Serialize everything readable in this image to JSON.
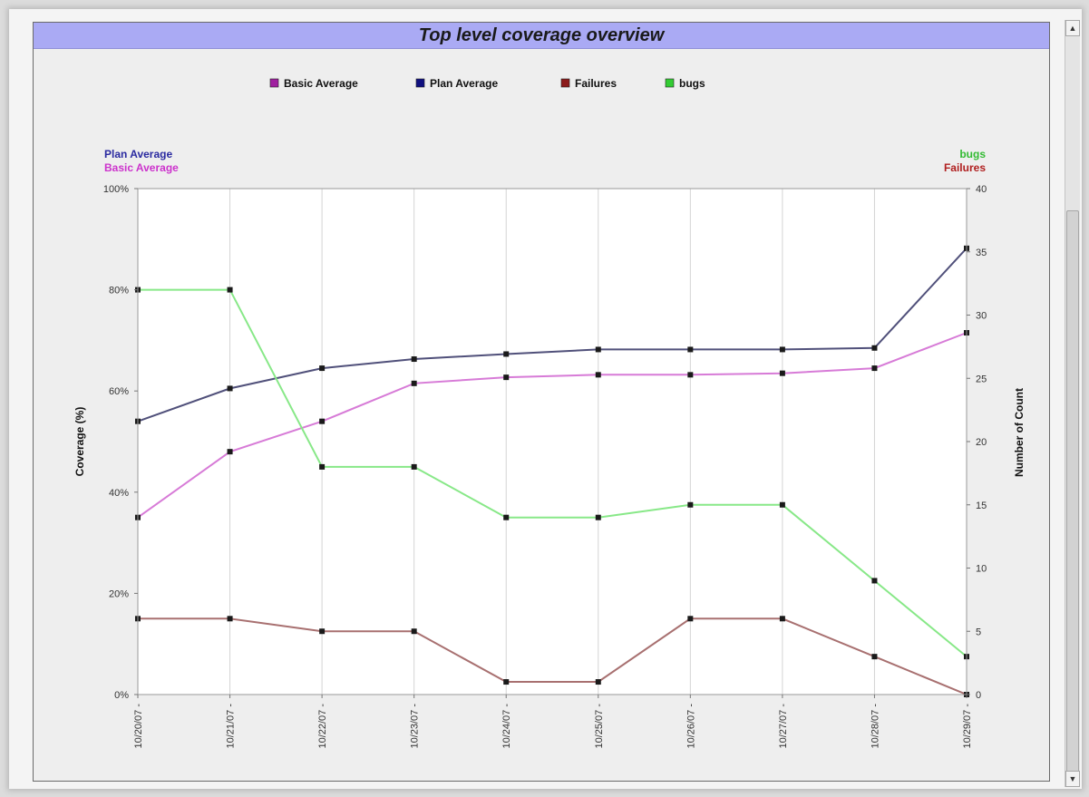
{
  "window": {
    "scrollbar": {
      "up_icon": "arrow-up-icon",
      "down_icon": "arrow-down-icon"
    }
  },
  "chart_data": {
    "type": "line",
    "title": "Top level coverage overview",
    "x": [
      "10/20/07",
      "10/21/07",
      "10/22/07",
      "10/23/07",
      "10/24/07",
      "10/25/07",
      "10/26/07",
      "10/27/07",
      "10/28/07",
      "10/29/07"
    ],
    "left_axis": {
      "label": "Coverage (%)",
      "range": [
        0,
        100
      ],
      "ticks": [
        "0%",
        "20%",
        "40%",
        "60%",
        "80%",
        "100%"
      ],
      "tick_values": [
        0,
        20,
        40,
        60,
        80,
        100
      ],
      "header_labels": [
        "Plan Average",
        "Basic Average"
      ]
    },
    "right_axis": {
      "label": "Number of Count",
      "range": [
        0,
        40
      ],
      "ticks": [
        "0",
        "5",
        "10",
        "15",
        "20",
        "25",
        "30",
        "35",
        "40"
      ],
      "tick_values": [
        0,
        5,
        10,
        15,
        20,
        25,
        30,
        35,
        40
      ],
      "header_labels": [
        "bugs",
        "Failures"
      ]
    },
    "legend": {
      "placement": "top-center",
      "items": [
        "Basic Average",
        "Plan Average",
        "Failures",
        "bugs"
      ]
    },
    "grid": {
      "vertical": true,
      "horizontal": false
    },
    "series": [
      {
        "name": "Basic Average",
        "axis": "left",
        "color": "#d77bd7",
        "legend_color": "#a020a0",
        "header_color": "#cc33cc",
        "values": [
          35,
          48,
          54,
          61.5,
          62.7,
          63.2,
          63.2,
          63.5,
          64.5,
          71.5
        ]
      },
      {
        "name": "Plan Average",
        "axis": "left",
        "color": "#50507a",
        "legend_color": "#101080",
        "header_color": "#2a2aa0",
        "values": [
          54,
          60.5,
          64.5,
          66.3,
          67.3,
          68.2,
          68.2,
          68.2,
          68.5,
          88.2
        ]
      },
      {
        "name": "Failures",
        "axis": "right",
        "color": "#a87070",
        "legend_color": "#8b1a1a",
        "header_color": "#b02020",
        "values": [
          6,
          6,
          5,
          5,
          1,
          1,
          6,
          6,
          3,
          0
        ]
      },
      {
        "name": "bugs",
        "axis": "right",
        "color": "#88e888",
        "legend_color": "#33cc33",
        "header_color": "#33bb33",
        "values": [
          32,
          32,
          18,
          18,
          14,
          14,
          15,
          15,
          9,
          3
        ]
      }
    ]
  }
}
